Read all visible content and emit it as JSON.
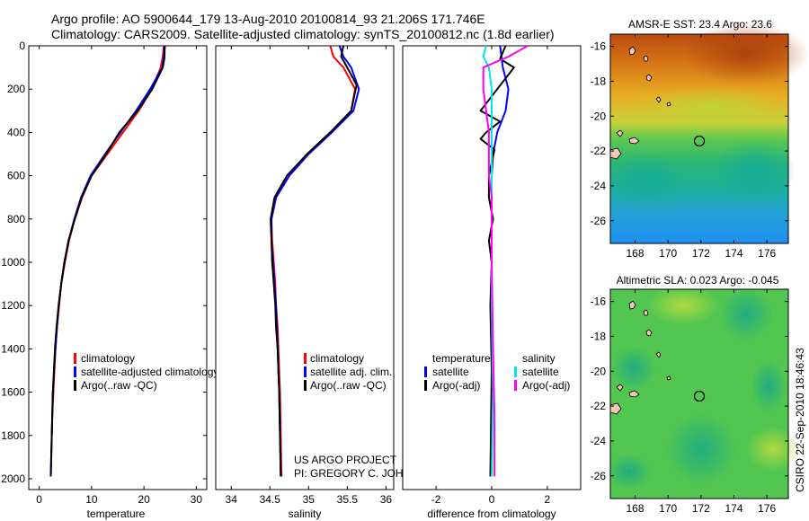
{
  "title": {
    "line1": "Argo profile: AO 5900644_179 13-Aug-2010 20100814_93 21.206S 171.746E",
    "line2": "Climatology: CARS2009. Satellite-adjusted climatology: synTS_20100812.nc (1.8d earlier)"
  },
  "colors": {
    "climatology": "#ff0000",
    "satellite": "#0000ff",
    "argo": "#000000",
    "sat_salinity": "#00e5e5",
    "argo_salinity": "#ff00ff"
  },
  "chart_data": [
    {
      "type": "line",
      "id": "temperature",
      "xlabel": "temperature",
      "ylabel": "",
      "xlim": [
        -2,
        32
      ],
      "ylim": [
        2050,
        0
      ],
      "xticks": [
        0,
        10,
        20,
        30
      ],
      "yticks": [
        0,
        200,
        400,
        600,
        800,
        1000,
        1200,
        1400,
        1600,
        1800,
        2000
      ],
      "legend": [
        "climatology",
        "satellite-adjusted climatology",
        "Argo(..raw -QC)"
      ],
      "series": [
        {
          "name": "climatology",
          "color": "#ff0000",
          "points": [
            [
              23.8,
              0
            ],
            [
              23.6,
              50
            ],
            [
              23.2,
              100
            ],
            [
              21.5,
              200
            ],
            [
              19,
              300
            ],
            [
              16,
              400
            ],
            [
              13,
              500
            ],
            [
              10,
              600
            ],
            [
              8.2,
              700
            ],
            [
              6.8,
              800
            ],
            [
              5.7,
              900
            ],
            [
              4.9,
              1000
            ],
            [
              4.2,
              1100
            ],
            [
              3.8,
              1200
            ],
            [
              3.4,
              1300
            ],
            [
              3.1,
              1400
            ],
            [
              2.9,
              1500
            ],
            [
              2.7,
              1600
            ],
            [
              2.5,
              1700
            ],
            [
              2.4,
              1800
            ]
          ]
        },
        {
          "name": "satellite-adjusted climatology",
          "color": "#0000ff",
          "points": [
            [
              23.9,
              0
            ],
            [
              23.8,
              50
            ],
            [
              23.5,
              100
            ],
            [
              21.2,
              200
            ],
            [
              18.5,
              300
            ],
            [
              15.5,
              400
            ],
            [
              12.6,
              500
            ],
            [
              9.8,
              600
            ],
            [
              8,
              700
            ],
            [
              6.7,
              800
            ],
            [
              5.6,
              900
            ],
            [
              4.8,
              1000
            ],
            [
              4.2,
              1100
            ],
            [
              3.7,
              1200
            ],
            [
              3.4,
              1300
            ],
            [
              3.1,
              1400
            ],
            [
              2.8,
              1500
            ],
            [
              2.6,
              1600
            ],
            [
              2.5,
              1700
            ],
            [
              2.4,
              1800
            ],
            [
              2.3,
              1900
            ],
            [
              2.2,
              1990
            ]
          ]
        },
        {
          "name": "Argo(..raw -QC)",
          "color": "#000000",
          "points": [
            [
              24,
              0
            ],
            [
              23.9,
              60
            ],
            [
              23.6,
              100
            ],
            [
              21.6,
              200
            ],
            [
              18.8,
              300
            ],
            [
              15.3,
              400
            ],
            [
              12.8,
              500
            ],
            [
              10,
              600
            ],
            [
              8.1,
              700
            ],
            [
              6.8,
              800
            ],
            [
              5.6,
              900
            ],
            [
              4.8,
              1000
            ],
            [
              4.2,
              1100
            ],
            [
              3.7,
              1200
            ],
            [
              3.3,
              1300
            ],
            [
              3,
              1400
            ],
            [
              2.8,
              1500
            ],
            [
              2.6,
              1600
            ],
            [
              2.5,
              1700
            ],
            [
              2.4,
              1800
            ],
            [
              2.3,
              1900
            ],
            [
              2.2,
              1990
            ]
          ]
        }
      ]
    },
    {
      "type": "line",
      "id": "salinity",
      "xlabel": "salinity",
      "ylabel": "",
      "xlim": [
        33.8,
        36.1
      ],
      "ylim": [
        2050,
        0
      ],
      "xticks": [
        34,
        34.5,
        35,
        35.5,
        36
      ],
      "legend": [
        "climatology",
        "satellite adj. clim.",
        "Argo(..raw -QC)"
      ],
      "annotation": [
        "US ARGO PROJECT",
        "PI: GREGORY C. JOHNSON"
      ],
      "series": [
        {
          "name": "climatology",
          "color": "#ff0000",
          "points": [
            [
              35.28,
              0
            ],
            [
              35.32,
              50
            ],
            [
              35.45,
              100
            ],
            [
              35.6,
              200
            ],
            [
              35.55,
              300
            ],
            [
              35.3,
              400
            ],
            [
              35,
              500
            ],
            [
              34.75,
              600
            ],
            [
              34.58,
              700
            ],
            [
              34.52,
              800
            ],
            [
              34.53,
              900
            ],
            [
              34.55,
              1000
            ],
            [
              34.57,
              1100
            ],
            [
              34.58,
              1200
            ],
            [
              34.6,
              1300
            ],
            [
              34.61,
              1400
            ],
            [
              34.62,
              1500
            ],
            [
              34.63,
              1600
            ],
            [
              34.64,
              1800
            ],
            [
              34.65,
              1990
            ]
          ]
        },
        {
          "name": "satellite adj. clim.",
          "color": "#0000ff",
          "points": [
            [
              35.4,
              0
            ],
            [
              35.45,
              50
            ],
            [
              35.55,
              100
            ],
            [
              35.65,
              200
            ],
            [
              35.58,
              300
            ],
            [
              35.3,
              400
            ],
            [
              35,
              500
            ],
            [
              34.75,
              600
            ],
            [
              34.58,
              700
            ],
            [
              34.52,
              800
            ],
            [
              34.52,
              900
            ],
            [
              34.54,
              1000
            ],
            [
              34.56,
              1100
            ],
            [
              34.58,
              1200
            ],
            [
              34.59,
              1300
            ],
            [
              34.6,
              1400
            ],
            [
              34.61,
              1500
            ],
            [
              34.62,
              1600
            ],
            [
              34.63,
              1800
            ],
            [
              34.64,
              1990
            ]
          ]
        },
        {
          "name": "Argo(..raw -QC)",
          "color": "#000000",
          "points": [
            [
              35.45,
              0
            ],
            [
              35.42,
              50
            ],
            [
              35.5,
              100
            ],
            [
              35.62,
              180
            ],
            [
              35.55,
              300
            ],
            [
              35.28,
              400
            ],
            [
              34.98,
              500
            ],
            [
              34.72,
              600
            ],
            [
              34.56,
              700
            ],
            [
              34.51,
              800
            ],
            [
              34.52,
              900
            ],
            [
              34.53,
              1000
            ],
            [
              34.55,
              1100
            ],
            [
              34.57,
              1200
            ],
            [
              34.58,
              1300
            ],
            [
              34.6,
              1400
            ],
            [
              34.61,
              1500
            ],
            [
              34.62,
              1600
            ],
            [
              34.63,
              1800
            ],
            [
              34.64,
              1990
            ]
          ]
        }
      ]
    },
    {
      "type": "line",
      "id": "difference",
      "xlabel": "difference from climatology",
      "ylabel": "",
      "xlim": [
        -3.2,
        3.2
      ],
      "ylim": [
        2050,
        0
      ],
      "xticks": [
        -2,
        0,
        2
      ],
      "legend_left_title": "temperature",
      "legend_right_title": "salinity",
      "legend_left": [
        "satellite",
        "Argo(-adj)"
      ],
      "legend_right": [
        "satellite",
        "Argo(-adj)"
      ],
      "series": [
        {
          "name": "temperature satellite",
          "color": "#0000ff",
          "points": [
            [
              0.3,
              0
            ],
            [
              0.4,
              100
            ],
            [
              0.6,
              200
            ],
            [
              0.5,
              300
            ],
            [
              0.2,
              400
            ],
            [
              0.05,
              500
            ],
            [
              0,
              600
            ],
            [
              0,
              800
            ],
            [
              0,
              1000
            ],
            [
              0,
              1400
            ],
            [
              0,
              1990
            ]
          ]
        },
        {
          "name": "temperature Argo(-adj)",
          "color": "#000000",
          "points": [
            [
              0.5,
              0
            ],
            [
              0.3,
              60
            ],
            [
              0.8,
              100
            ],
            [
              0.2,
              200
            ],
            [
              -0.4,
              300
            ],
            [
              0.3,
              350
            ],
            [
              -0.2,
              400
            ],
            [
              -0.4,
              430
            ],
            [
              0.1,
              480
            ],
            [
              -0.1,
              600
            ],
            [
              -0.1,
              700
            ],
            [
              0.05,
              800
            ],
            [
              -0.1,
              900
            ],
            [
              0,
              1000
            ],
            [
              -0.05,
              1200
            ],
            [
              0,
              1500
            ],
            [
              -0.05,
              1990
            ]
          ]
        },
        {
          "name": "salinity satellite",
          "color": "#00e5e5",
          "points": [
            [
              -0.2,
              0
            ],
            [
              -0.3,
              50
            ],
            [
              -0.1,
              100
            ],
            [
              0,
              200
            ],
            [
              0,
              400
            ],
            [
              0,
              600
            ],
            [
              0,
              800
            ],
            [
              0,
              1200
            ],
            [
              0.05,
              1600
            ],
            [
              0,
              1990
            ]
          ]
        },
        {
          "name": "salinity Argo(-adj)",
          "color": "#ff00ff",
          "points": [
            [
              1.3,
              0
            ],
            [
              0.6,
              50
            ],
            [
              -0.3,
              100
            ],
            [
              -0.3,
              200
            ],
            [
              -0.2,
              300
            ],
            [
              -0.1,
              400
            ],
            [
              -0.1,
              500
            ],
            [
              -0.1,
              600
            ],
            [
              0,
              700
            ],
            [
              0,
              1000
            ],
            [
              0.05,
              1400
            ],
            [
              0.1,
              1700
            ],
            [
              0.1,
              1990
            ]
          ]
        }
      ]
    },
    {
      "type": "heatmap",
      "id": "sst-map",
      "title": "AMSR-E SST: 23.4 Argo: 23.6",
      "xlim": [
        166.5,
        177.3
      ],
      "ylim": [
        -27.3,
        -15.3
      ],
      "xticks": [
        168,
        170,
        172,
        174,
        176
      ],
      "yticks": [
        -16,
        -18,
        -20,
        -22,
        -24,
        -26
      ],
      "marker": [
        171.746,
        -21.206
      ]
    },
    {
      "type": "heatmap",
      "id": "sla-map",
      "title": "Altimetric SLA: 0.023 Argo: -0.045",
      "xlim": [
        166.5,
        177.3
      ],
      "ylim": [
        -27.3,
        -15.3
      ],
      "xticks": [
        168,
        170,
        172,
        174,
        176
      ],
      "yticks": [
        -16,
        -18,
        -20,
        -22,
        -24,
        -26
      ],
      "marker": [
        171.746,
        -21.206
      ]
    }
  ],
  "stamp": "CSIRO 22-Sep-2010 18:46:43"
}
